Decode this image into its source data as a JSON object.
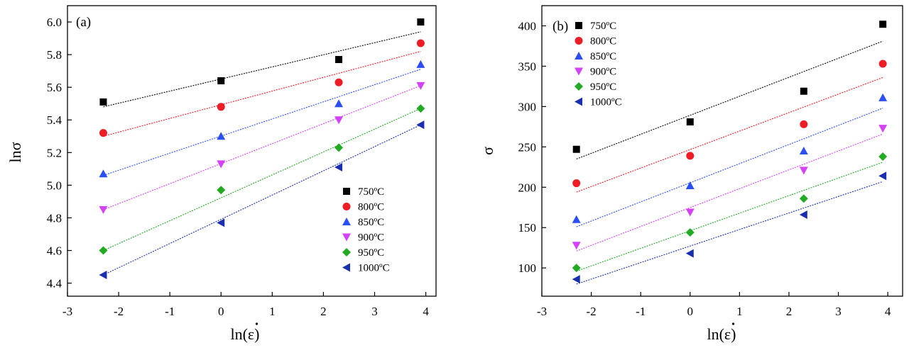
{
  "chart_data": [
    {
      "type": "scatter",
      "panel_label": "(a)",
      "xlabel": "ln(ε)",
      "ylabel": "lnσ",
      "xlim": [
        -3,
        4.2
      ],
      "ylim": [
        4.32,
        6.1
      ],
      "xticks": [
        "-3",
        "-2",
        "-1",
        "0",
        "1",
        "2",
        "3",
        "4"
      ],
      "xtick_values": [
        -3,
        -2,
        -1,
        0,
        1,
        2,
        3,
        4
      ],
      "yticks": [
        "4.4",
        "4.6",
        "4.8",
        "5.0",
        "5.2",
        "5.4",
        "5.6",
        "5.8",
        "6.0"
      ],
      "ytick_values": [
        4.4,
        4.6,
        4.8,
        5.0,
        5.2,
        5.4,
        5.6,
        5.8,
        6.0
      ],
      "legend_position": "bottom-right",
      "x": [
        -2.3,
        0,
        2.3,
        3.9
      ],
      "series": [
        {
          "name": "750ºC",
          "marker": "square",
          "color": "#000000",
          "values": [
            5.51,
            5.64,
            5.77,
            6.0
          ],
          "fit": [
            5.48,
            5.94
          ]
        },
        {
          "name": "800ºC",
          "marker": "circle",
          "color": "#ee1c24",
          "values": [
            5.32,
            5.48,
            5.63,
            5.87
          ],
          "fit": [
            5.3,
            5.82
          ]
        },
        {
          "name": "850ºC",
          "marker": "triangle-up",
          "color": "#2c4ff5",
          "values": [
            5.07,
            5.3,
            5.5,
            5.74
          ],
          "fit": [
            5.06,
            5.71
          ]
        },
        {
          "name": "900ºC",
          "marker": "triangle-down",
          "color": "#d442f5",
          "values": [
            4.85,
            5.13,
            5.4,
            5.61
          ],
          "fit": [
            4.85,
            5.61
          ]
        },
        {
          "name": "950ºC",
          "marker": "diamond",
          "color": "#22aa22",
          "values": [
            4.6,
            4.97,
            5.23,
            5.47
          ],
          "fit": [
            4.6,
            5.47
          ]
        },
        {
          "name": "1000ºC",
          "marker": "triangle-left",
          "color": "#1a2fb0",
          "values": [
            4.45,
            4.77,
            5.11,
            5.37
          ],
          "fit": [
            4.45,
            5.37
          ]
        }
      ]
    },
    {
      "type": "scatter",
      "panel_label": "(b)",
      "xlabel": "ln(ε)",
      "ylabel": "σ",
      "xlim": [
        -3,
        4.3
      ],
      "ylim": [
        65,
        425
      ],
      "xticks": [
        "-3",
        "-2",
        "-1",
        "0",
        "1",
        "2",
        "3",
        "4"
      ],
      "xtick_values": [
        -3,
        -2,
        -1,
        0,
        1,
        2,
        3,
        4
      ],
      "yticks": [
        "100",
        "150",
        "200",
        "250",
        "300",
        "350",
        "400"
      ],
      "ytick_values": [
        100,
        150,
        200,
        250,
        300,
        350,
        400
      ],
      "legend_position": "top-left",
      "x": [
        -2.3,
        0,
        2.3,
        3.9
      ],
      "series": [
        {
          "name": "750ºC",
          "marker": "square",
          "color": "#000000",
          "values": [
            247,
            281,
            319,
            402
          ],
          "fit": [
            235,
            381
          ]
        },
        {
          "name": "800ºC",
          "marker": "circle",
          "color": "#ee1c24",
          "values": [
            205,
            239,
            278,
            353
          ],
          "fit": [
            194,
            336
          ]
        },
        {
          "name": "850ºC",
          "marker": "triangle-up",
          "color": "#2c4ff5",
          "values": [
            160,
            202,
            245,
            311
          ],
          "fit": [
            151,
            298
          ]
        },
        {
          "name": "900ºC",
          "marker": "triangle-down",
          "color": "#d442f5",
          "values": [
            128,
            169,
            221,
            273
          ],
          "fit": [
            121,
            266
          ]
        },
        {
          "name": "950ºC",
          "marker": "diamond",
          "color": "#22aa22",
          "values": [
            100,
            144,
            186,
            238
          ],
          "fit": [
            96,
            231
          ]
        },
        {
          "name": "1000ºC",
          "marker": "triangle-left",
          "color": "#1a2fb0",
          "values": [
            86,
            118,
            166,
            214
          ],
          "fit": [
            80,
            207
          ]
        }
      ]
    }
  ]
}
